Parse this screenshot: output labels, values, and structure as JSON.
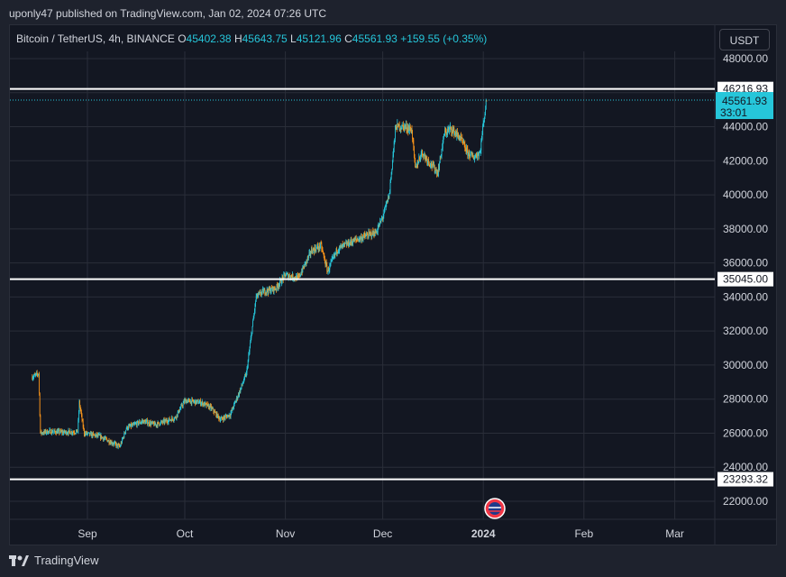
{
  "publisher": "uponly47 published on TradingView.com, Jan 02, 2024 07:26 UTC",
  "symbol": {
    "name": "Bitcoin / TetherUS, 4h, BINANCE"
  },
  "ohlc": {
    "o_label": "O",
    "o": "45402.38",
    "h_label": "H",
    "h": "45643.75",
    "l_label": "L",
    "l": "45121.96",
    "c_label": "C",
    "c": "45561.93",
    "change": "+159.55 (+0.35%)"
  },
  "currency_button": "USDT",
  "brand": "TradingView",
  "colors": {
    "up": "#26c6da",
    "down": "#f7931a",
    "background": "#131722",
    "grid": "#2a2e39",
    "level_lines": "#ffffff"
  },
  "chart_data": {
    "type": "candlestick",
    "timeframe": "4h",
    "x_ticks": [
      "Sep",
      "Oct",
      "Nov",
      "Dec",
      "2024",
      "Feb",
      "Mar"
    ],
    "y_ticks": [
      22000,
      24000,
      26000,
      28000,
      30000,
      32000,
      34000,
      36000,
      38000,
      40000,
      42000,
      44000,
      46000,
      48000
    ],
    "y_tick_labels": [
      "22000.00",
      "24000.00",
      "26000.00",
      "28000.00",
      "30000.00",
      "32000.00",
      "34000.00",
      "36000.00",
      "38000.00",
      "40000.00",
      "42000.00",
      "44000.00",
      "46000.00",
      "48000.00"
    ],
    "ylim": [
      21000,
      48500
    ],
    "price_path": [
      [
        "Aug 15",
        29300
      ],
      [
        "Aug 17",
        29500
      ],
      [
        "Aug 17.5",
        26000
      ],
      [
        "Aug 20",
        26100
      ],
      [
        "Aug 25",
        26050
      ],
      [
        "Aug 29",
        26100
      ],
      [
        "Aug 29.5",
        27800
      ],
      [
        "Aug 31",
        26000
      ],
      [
        "Sep 5",
        25800
      ],
      [
        "Sep 11",
        25200
      ],
      [
        "Sep 13",
        26300
      ],
      [
        "Sep 18",
        26700
      ],
      [
        "Sep 22",
        26500
      ],
      [
        "Sep 28",
        26900
      ],
      [
        "Oct 1",
        27900
      ],
      [
        "Oct 6",
        27800
      ],
      [
        "Oct 9",
        27500
      ],
      [
        "Oct 12",
        26800
      ],
      [
        "Oct 15",
        27100
      ],
      [
        "Oct 18",
        28500
      ],
      [
        "Oct 20",
        29500
      ],
      [
        "Oct 23",
        34000
      ],
      [
        "Oct 25",
        34300
      ],
      [
        "Oct 29",
        34500
      ],
      [
        "Nov 1",
        35300
      ],
      [
        "Nov 5",
        35100
      ],
      [
        "Nov 9",
        36700
      ],
      [
        "Nov 12",
        37000
      ],
      [
        "Nov 14",
        35500
      ],
      [
        "Nov 17",
        36800
      ],
      [
        "Nov 22",
        37300
      ],
      [
        "Nov 26",
        37600
      ],
      [
        "Nov 29",
        37800
      ],
      [
        "Dec 1",
        38700
      ],
      [
        "Dec 3",
        40000
      ],
      [
        "Dec 5",
        44000
      ],
      [
        "Dec 8",
        44000
      ],
      [
        "Dec 10",
        43800
      ],
      [
        "Dec 11",
        41500
      ],
      [
        "Dec 13",
        42500
      ],
      [
        "Dec 15",
        42000
      ],
      [
        "Dec 18",
        41300
      ],
      [
        "Dec 20",
        43600
      ],
      [
        "Dec 22",
        43900
      ],
      [
        "Dec 25",
        43300
      ],
      [
        "Dec 27",
        42500
      ],
      [
        "Dec 29",
        42200
      ],
      [
        "Dec 31",
        42500
      ],
      [
        "Jan 1",
        44200
      ],
      [
        "Jan 2",
        45562
      ]
    ],
    "horizontal_levels": [
      {
        "price": 46216.93,
        "label": "46216.93"
      },
      {
        "price": 35045.0,
        "label": "35045.00"
      },
      {
        "price": 23293.32,
        "label": "23293.32"
      }
    ],
    "last_price": {
      "price": 45561.93,
      "label": "45561.93",
      "countdown": "33:01"
    },
    "grid": true
  }
}
